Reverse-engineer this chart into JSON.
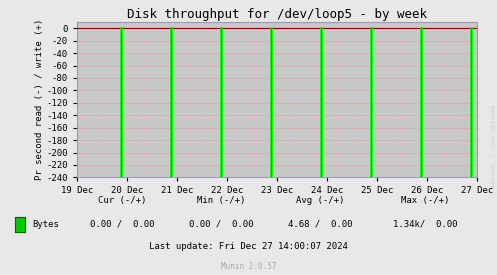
{
  "title": "Disk throughput for /dev/loop5 - by week",
  "ylabel": "Pr second read (-) / write (+)",
  "background_color": "#e8e8e8",
  "plot_bg_color": "#c8c8c8",
  "grid_color": "#f08080",
  "ylim": [
    -240,
    10
  ],
  "yticks": [
    0,
    -20,
    -40,
    -60,
    -80,
    -100,
    -120,
    -140,
    -160,
    -180,
    -200,
    -220,
    -240
  ],
  "xticklabels": [
    "19 Dec",
    "20 Dec",
    "21 Dec",
    "22 Dec",
    "23 Dec",
    "24 Dec",
    "25 Dec",
    "26 Dec",
    "27 Dec"
  ],
  "xtick_positions": [
    0,
    1,
    2,
    3,
    4,
    5,
    6,
    7,
    8
  ],
  "spike_positions": [
    0.87,
    1.87,
    2.87,
    3.87,
    4.87,
    5.87,
    6.87,
    7.87
  ],
  "spike_depths": [
    -240,
    -240,
    -240,
    -240,
    -240,
    -240,
    -240,
    -240
  ],
  "line_color": "#00ff00",
  "line_color_dark": "#007700",
  "baseline_color": "#800000",
  "title_color": "#000000",
  "legend_label": "Bytes",
  "cur_label": "Cur (-/+)",
  "min_label": "Min (-/+)",
  "avg_label": "Avg (-/+)",
  "max_label": "Max (-/+)",
  "cur_val": "0.00 /  0.00",
  "min_val": "0.00 /  0.00",
  "avg_val": "4.68 /  0.00",
  "max_val": "1.34k/  0.00",
  "last_update": "Last update: Fri Dec 27 14:00:07 2024",
  "munin_text": "Munin 2.0.57",
  "watermark": "RRDTOOL / TOBI OETIKER",
  "axis_color": "#9999bb",
  "tick_color": "#aaaaaa",
  "arrow_color": "#9999bb"
}
